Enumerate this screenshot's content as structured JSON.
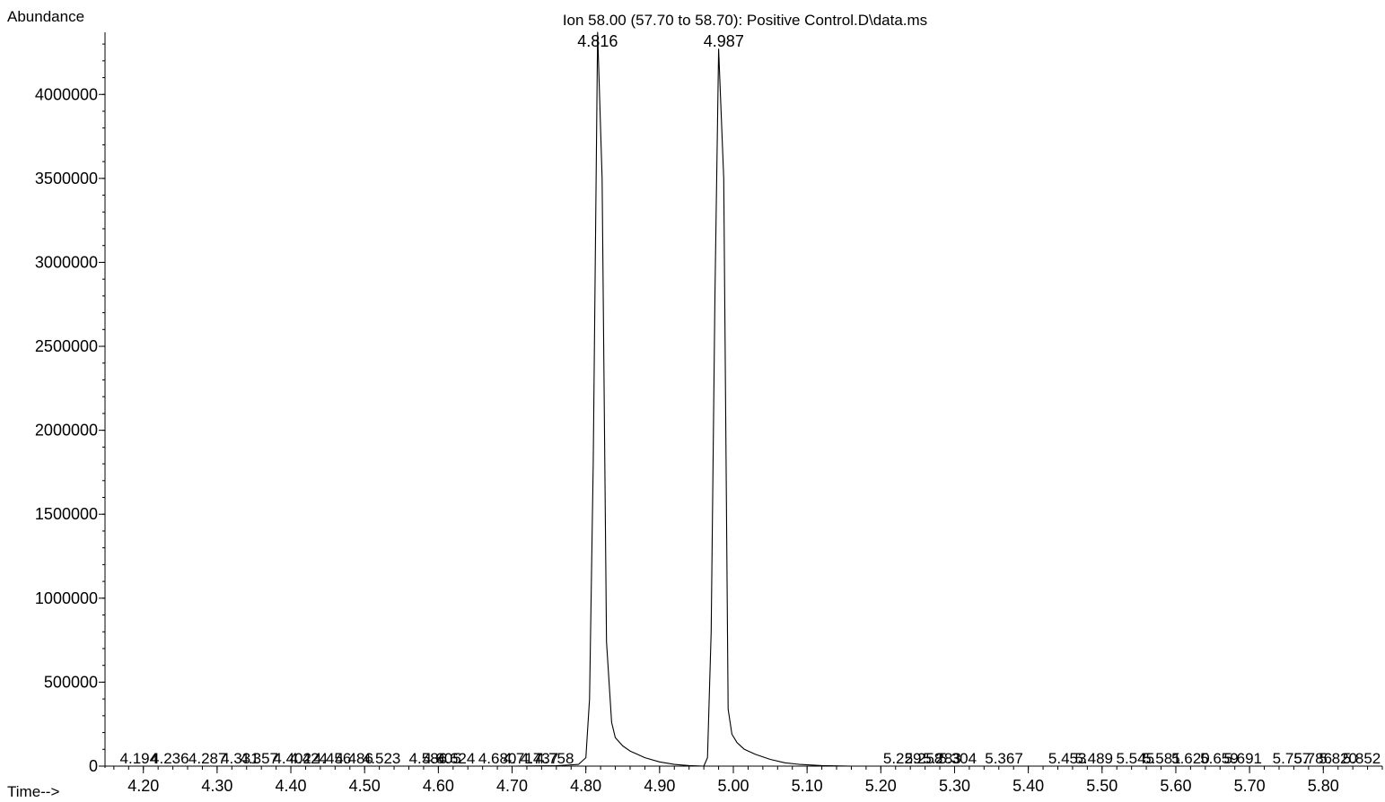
{
  "chart_data": {
    "type": "line",
    "title": "Ion  58.00 (57.70 to 58.70): Positive Control.D\\data.ms",
    "ylabel": "Abundance",
    "xlabel": "Time-->",
    "xlim": [
      4.148,
      5.88
    ],
    "ylim": [
      0,
      4370000
    ],
    "x_ticks": [
      4.2,
      4.3,
      4.4,
      4.5,
      4.6,
      4.7,
      4.8,
      4.9,
      5.0,
      5.1,
      5.2,
      5.3,
      5.4,
      5.5,
      5.6,
      5.7,
      5.8
    ],
    "x_tick_labels": [
      "4.20",
      "4.30",
      "4.40",
      "4.50",
      "4.60",
      "4.70",
      "4.80",
      "4.90",
      "5.00",
      "5.10",
      "5.20",
      "5.30",
      "5.40",
      "5.50",
      "5.60",
      "5.70",
      "5.80"
    ],
    "y_ticks": [
      0,
      500000,
      1000000,
      1500000,
      2000000,
      2500000,
      3000000,
      3500000,
      4000000
    ],
    "y_tick_labels": [
      "0",
      "500000",
      "1000000",
      "1500000",
      "2000000",
      "2500000",
      "3000000",
      "3500000",
      "4000000"
    ],
    "y_minor_step": 100000,
    "x_minor_step": 0.02,
    "grid": false,
    "legend": "none",
    "color": "#000000",
    "series": [
      {
        "x": [
          4.148,
          4.7,
          4.76,
          4.79,
          4.8,
          4.805,
          4.81,
          4.816,
          4.822,
          4.828,
          4.835,
          4.84,
          4.85,
          4.86,
          4.87,
          4.88,
          4.9,
          4.92,
          4.94,
          4.96,
          4.965,
          4.97,
          4.975,
          4.98,
          4.987,
          4.993,
          4.998,
          5.005,
          5.015,
          5.03,
          5.05,
          5.07,
          5.09,
          5.12,
          5.16,
          5.88
        ],
        "y": [
          0,
          0,
          2000,
          10000,
          50000,
          400000,
          1800000,
          4370000,
          3500000,
          740000,
          260000,
          170000,
          120000,
          90000,
          70000,
          50000,
          25000,
          10000,
          3000,
          0,
          50000,
          800000,
          2800000,
          4270000,
          3500000,
          340000,
          190000,
          140000,
          100000,
          70000,
          40000,
          20000,
          10000,
          3000,
          0,
          0
        ]
      }
    ],
    "peak_labels": [
      {
        "x": 4.816,
        "y": 4370000,
        "text": "4.816"
      },
      {
        "x": 4.987,
        "y": 4270000,
        "text": "4.987"
      }
    ],
    "baseline_labels": [
      {
        "x": 4.194,
        "text": "4.194"
      },
      {
        "x": 4.236,
        "text": "4.236"
      },
      {
        "x": 4.287,
        "text": "4.287"
      },
      {
        "x": 4.331,
        "text": "4.331"
      },
      {
        "x": 4.357,
        "text": "4.357"
      },
      {
        "x": 4.402,
        "text": "4.402"
      },
      {
        "x": 4.424,
        "text": "4.424"
      },
      {
        "x": 4.456,
        "text": "4.456"
      },
      {
        "x": 4.486,
        "text": "4.486"
      },
      {
        "x": 4.523,
        "text": "4.523"
      },
      {
        "x": 4.586,
        "text": "4.586"
      },
      {
        "x": 4.605,
        "text": "4.605"
      },
      {
        "x": 4.624,
        "text": "4.624"
      },
      {
        "x": 4.68,
        "text": "4.680"
      },
      {
        "x": 4.714,
        "text": "4.714"
      },
      {
        "x": 4.737,
        "text": "4.737"
      },
      {
        "x": 4.758,
        "text": "4.758"
      },
      {
        "x": 5.229,
        "text": "5.229"
      },
      {
        "x": 5.258,
        "text": "5.258"
      },
      {
        "x": 5.283,
        "text": "5.283"
      },
      {
        "x": 5.304,
        "text": "5.304"
      },
      {
        "x": 5.367,
        "text": "5.367"
      },
      {
        "x": 5.453,
        "text": "5.453"
      },
      {
        "x": 5.489,
        "text": "5.489"
      },
      {
        "x": 5.545,
        "text": "5.545"
      },
      {
        "x": 5.581,
        "text": "5.581"
      },
      {
        "x": 5.62,
        "text": "5.620"
      },
      {
        "x": 5.659,
        "text": "5.659"
      },
      {
        "x": 5.691,
        "text": "5.691"
      },
      {
        "x": 5.757,
        "text": "5.757"
      },
      {
        "x": 5.786,
        "text": "5.786"
      },
      {
        "x": 5.82,
        "text": "5.820"
      },
      {
        "x": 5.852,
        "text": "5.852"
      }
    ]
  }
}
